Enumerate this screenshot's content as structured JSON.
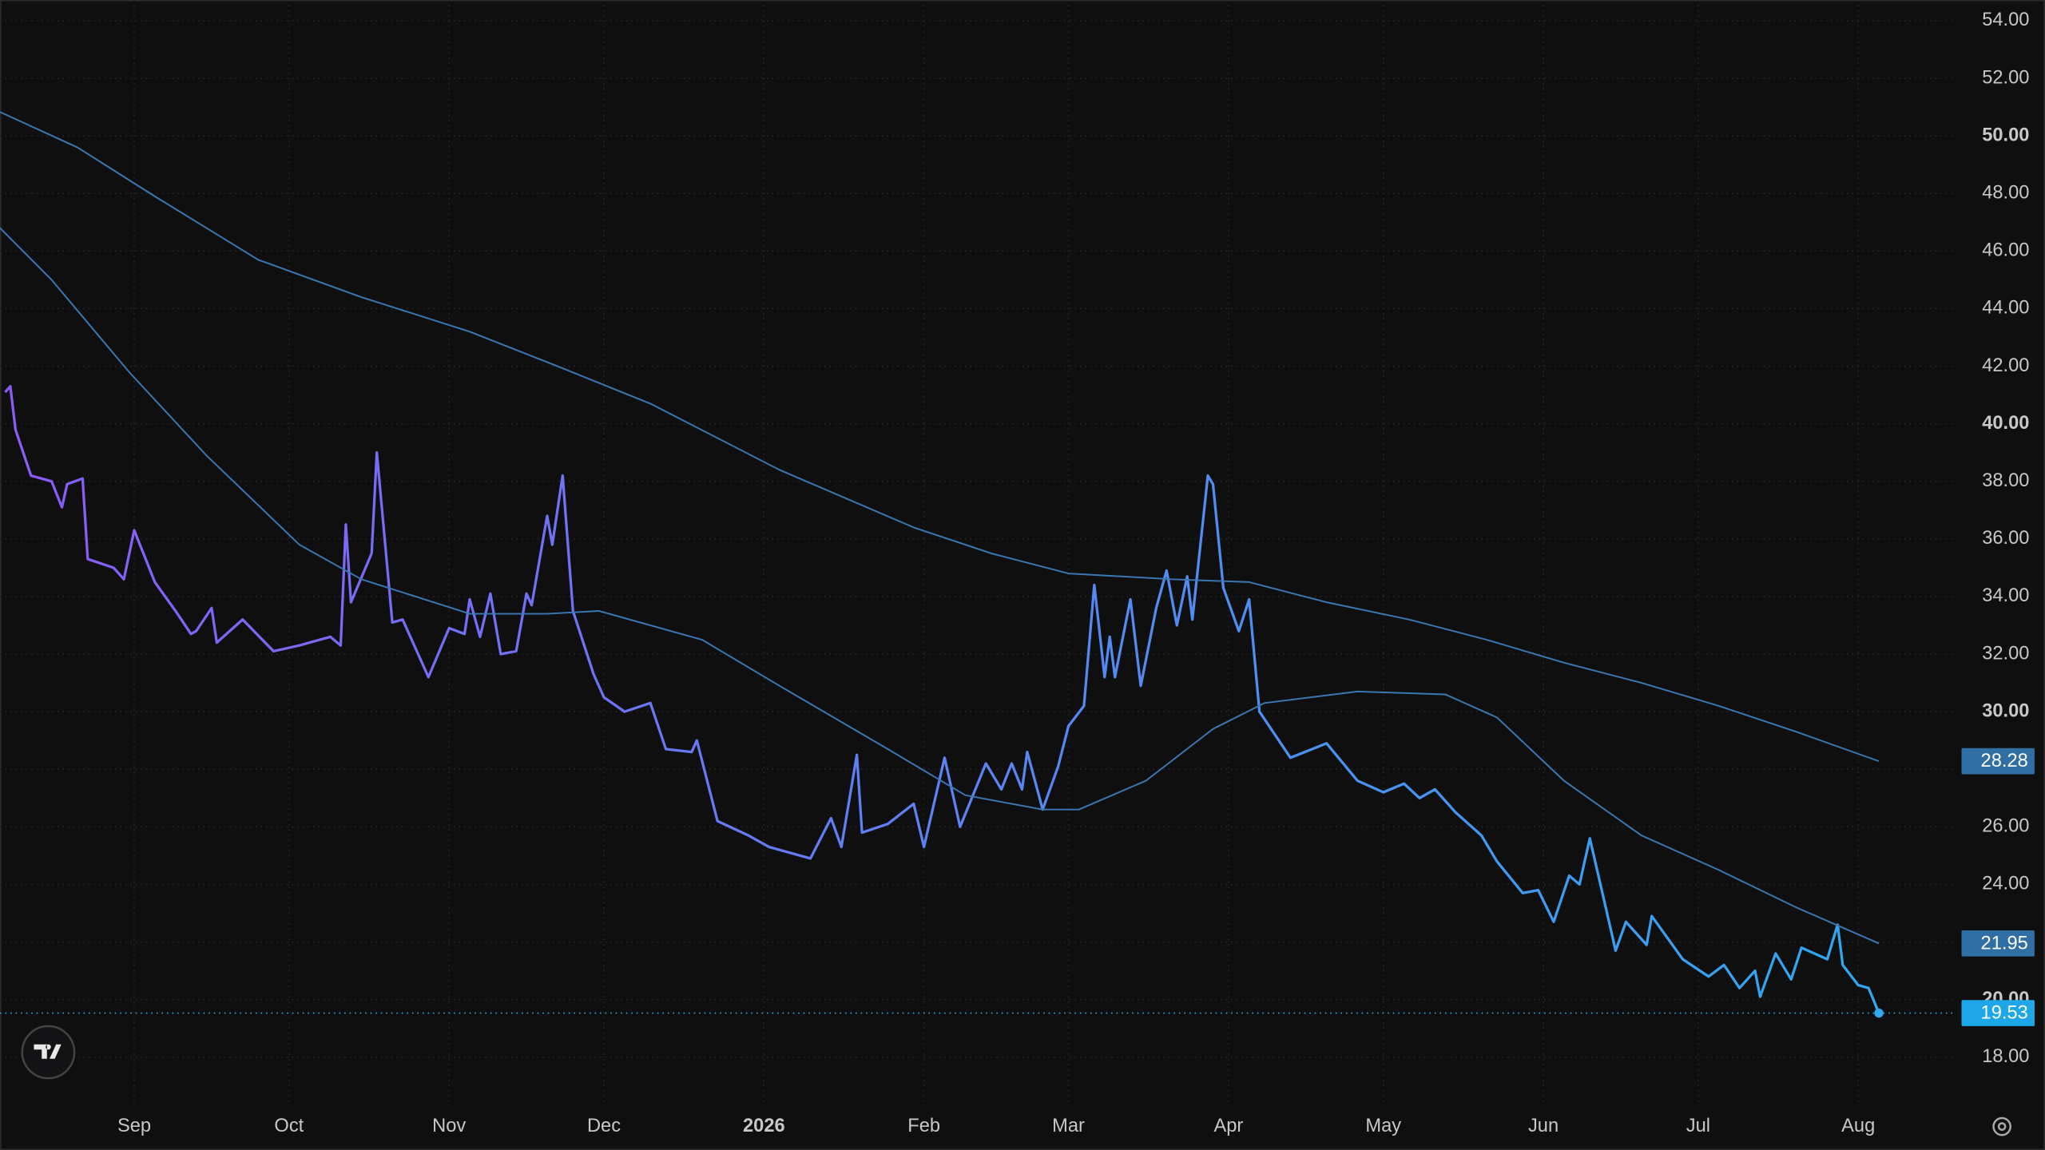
{
  "chart_data": {
    "type": "line",
    "xlim": [
      -1,
      378
    ],
    "ylim": [
      16.45,
      54.72
    ],
    "xticks": [
      {
        "value": 25,
        "label": "Sep"
      },
      {
        "value": 55,
        "label": "Oct"
      },
      {
        "value": 86,
        "label": "Nov"
      },
      {
        "value": 116,
        "label": "Dec"
      },
      {
        "value": 147,
        "label": "2026"
      },
      {
        "value": 178,
        "label": "Feb"
      },
      {
        "value": 206,
        "label": "Mar"
      },
      {
        "value": 237,
        "label": "Apr"
      },
      {
        "value": 267,
        "label": "May"
      },
      {
        "value": 298,
        "label": "Jun"
      },
      {
        "value": 328,
        "label": "Jul"
      },
      {
        "value": 359,
        "label": "Aug"
      }
    ],
    "yticks": [
      {
        "value": 18,
        "label": "18.00"
      },
      {
        "value": 20,
        "label": "20.00"
      },
      {
        "value": 22,
        "label": "22.00"
      },
      {
        "value": 24,
        "label": "24.00"
      },
      {
        "value": 26,
        "label": "26.00"
      },
      {
        "value": 28,
        "label": "28.00"
      },
      {
        "value": 30,
        "label": "30.00"
      },
      {
        "value": 32,
        "label": "32.00"
      },
      {
        "value": 34,
        "label": "34.00"
      },
      {
        "value": 36,
        "label": "36.00"
      },
      {
        "value": 38,
        "label": "38.00"
      },
      {
        "value": 40,
        "label": "40.00"
      },
      {
        "value": 42,
        "label": "42.00"
      },
      {
        "value": 44,
        "label": "44.00"
      },
      {
        "value": 46,
        "label": "46.00"
      },
      {
        "value": 48,
        "label": "48.00"
      },
      {
        "value": 50,
        "label": "50.00"
      },
      {
        "value": 52,
        "label": "52.00"
      },
      {
        "value": 54,
        "label": "54.00"
      }
    ],
    "grid": true,
    "series": [
      {
        "colors": [
          "#8a5cf6",
          "#2fa8f0"
        ],
        "last_price_line": true,
        "x": [
          0,
          1,
          2,
          5,
          9,
          11,
          12,
          15,
          16,
          21,
          23,
          25,
          29,
          33,
          36,
          37,
          40,
          41,
          46,
          52,
          57,
          63,
          65,
          66,
          67,
          71,
          72,
          75,
          77,
          82,
          86,
          89,
          90,
          92,
          94,
          96,
          99,
          101,
          102,
          105,
          106,
          108,
          110,
          114,
          116,
          120,
          125,
          128,
          133,
          134,
          138,
          144,
          148,
          156,
          160,
          162,
          165,
          166,
          171,
          176,
          178,
          182,
          185,
          190,
          193,
          195,
          197,
          198,
          201,
          204,
          206,
          209,
          211,
          213,
          214,
          215,
          218,
          220,
          223,
          225,
          227,
          229,
          230,
          233,
          234,
          236,
          239,
          241,
          243,
          249,
          256,
          262,
          267,
          271,
          274,
          277,
          281,
          286,
          289,
          294,
          297,
          300,
          303,
          305,
          307,
          312,
          314,
          318,
          319,
          325,
          330,
          333,
          336,
          339,
          340,
          343,
          346,
          348,
          353,
          355,
          356,
          359,
          361,
          363
        ],
        "values": [
          41.1,
          41.3,
          39.8,
          38.2,
          38.0,
          37.1,
          37.9,
          38.1,
          35.3,
          35.0,
          34.6,
          36.3,
          34.5,
          33.5,
          32.7,
          32.8,
          33.6,
          32.4,
          33.2,
          32.1,
          32.3,
          32.6,
          32.3,
          36.5,
          33.8,
          35.5,
          39.0,
          33.1,
          33.2,
          31.2,
          32.9,
          32.7,
          33.9,
          32.6,
          34.1,
          32.0,
          32.1,
          34.1,
          33.7,
          36.8,
          35.8,
          38.2,
          33.5,
          31.3,
          30.5,
          30.0,
          30.3,
          28.7,
          28.6,
          29.0,
          26.2,
          25.7,
          25.3,
          24.9,
          26.3,
          25.3,
          28.5,
          25.8,
          26.1,
          26.8,
          25.3,
          28.4,
          26.0,
          28.2,
          27.3,
          28.2,
          27.3,
          28.6,
          26.6,
          28.1,
          29.5,
          30.2,
          34.4,
          31.2,
          32.6,
          31.2,
          33.9,
          30.9,
          33.6,
          34.9,
          33.0,
          34.7,
          33.2,
          38.2,
          37.9,
          34.3,
          32.8,
          33.9,
          30.0,
          28.4,
          28.9,
          27.6,
          27.2,
          27.5,
          27.0,
          27.3,
          26.5,
          25.7,
          24.8,
          23.7,
          23.8,
          22.7,
          24.3,
          24.0,
          25.6,
          21.7,
          22.7,
          21.9,
          22.9,
          21.4,
          20.8,
          21.2,
          20.4,
          21.0,
          20.1,
          21.6,
          20.7,
          21.8,
          21.4,
          22.6,
          21.2,
          20.5,
          20.4,
          19.53
        ]
      },
      {
        "colors": [
          "#3a78b4",
          "#3a78b4"
        ],
        "x": [
          -1,
          14,
          29,
          49,
          69,
          90,
          107,
          125,
          150,
          176,
          191,
          206,
          226,
          241,
          256,
          272,
          287,
          302,
          317,
          332,
          347,
          363
        ],
        "values": [
          50.83,
          49.6,
          47.9,
          45.7,
          44.4,
          43.2,
          42.0,
          40.7,
          38.4,
          36.4,
          35.5,
          34.8,
          34.6,
          34.5,
          33.8,
          33.2,
          32.5,
          31.7,
          31.0,
          30.2,
          29.3,
          28.28
        ]
      },
      {
        "colors": [
          "#3a78b4",
          "#3a78b4"
        ],
        "x": [
          -1,
          9,
          24,
          39,
          57,
          69,
          90,
          105,
          115,
          135,
          150,
          171,
          186,
          201,
          208,
          221,
          234,
          244,
          262,
          279,
          289,
          302,
          317,
          332,
          347,
          363
        ],
        "values": [
          46.8,
          45.0,
          41.8,
          38.9,
          35.8,
          34.6,
          33.4,
          33.4,
          33.5,
          32.5,
          30.9,
          28.7,
          27.1,
          26.6,
          26.6,
          27.6,
          29.4,
          30.3,
          30.7,
          30.6,
          29.8,
          27.6,
          25.7,
          24.5,
          23.2,
          21.95
        ]
      }
    ]
  }
}
